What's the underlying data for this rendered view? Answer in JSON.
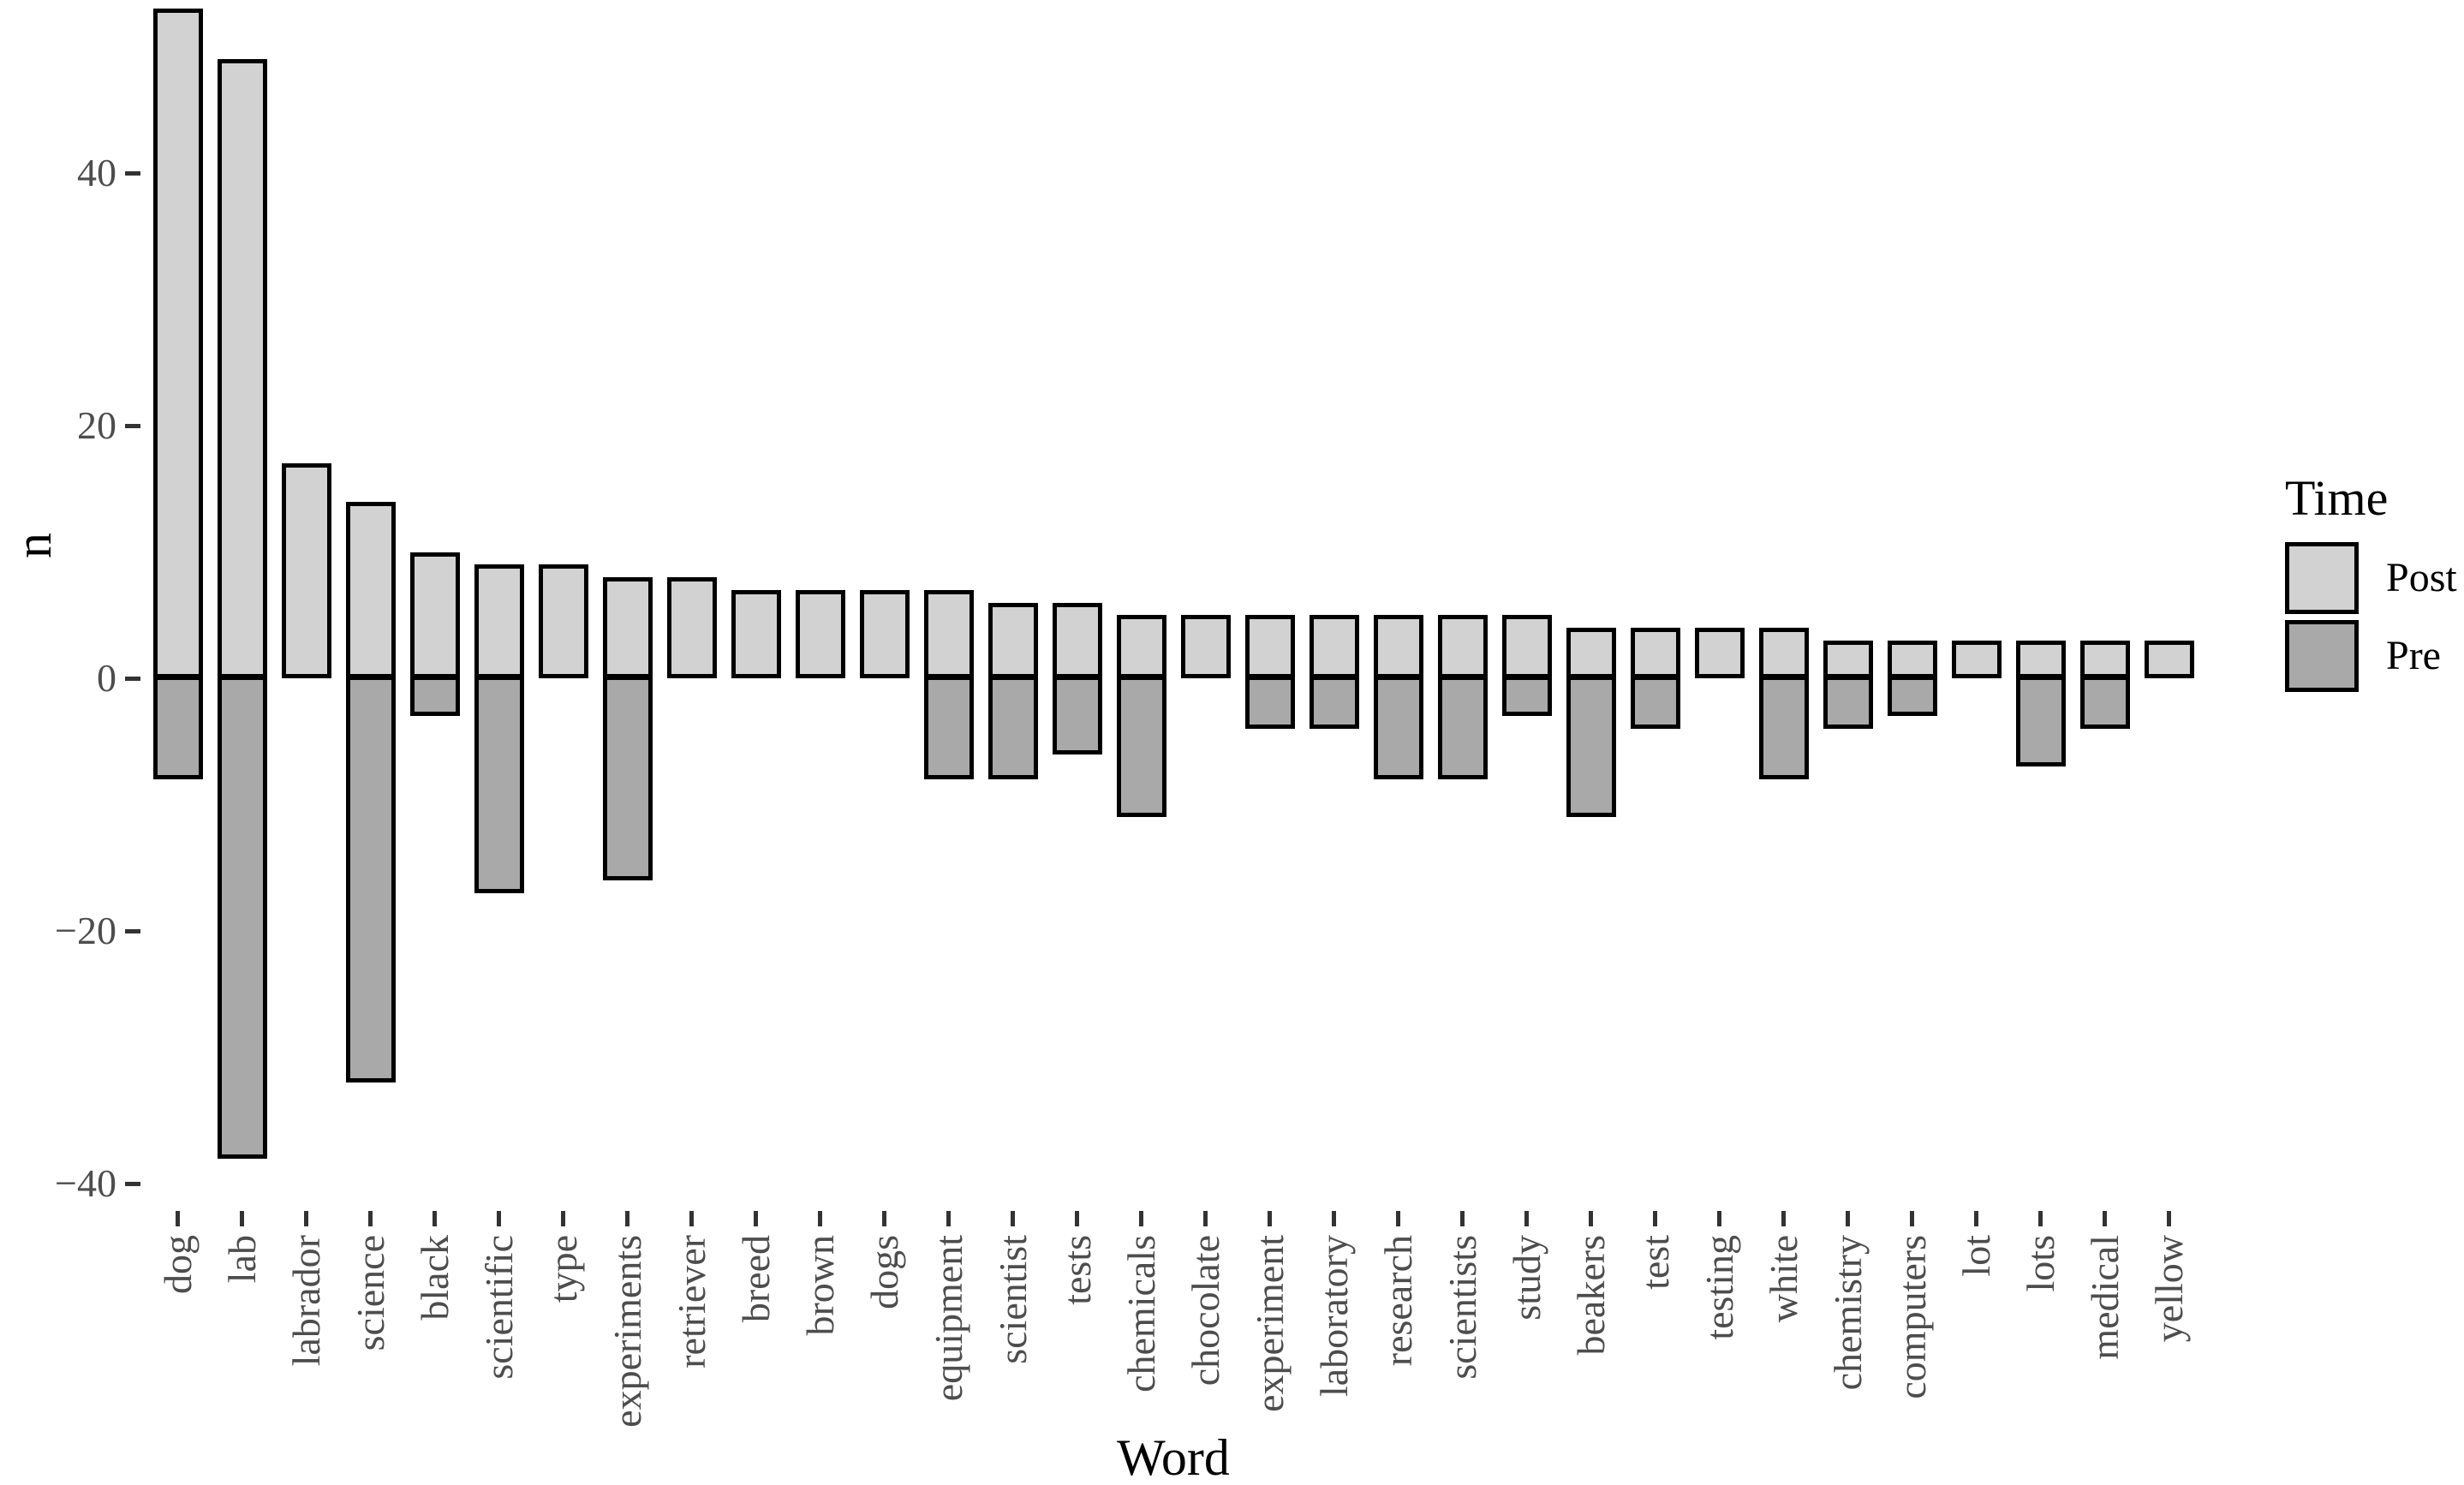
{
  "chart_data": {
    "type": "bar",
    "subtype": "diverging-stacked-vertical",
    "title": "",
    "xlabel": "Word",
    "ylabel": "n",
    "categories": [
      "dog",
      "lab",
      "labrador",
      "science",
      "black",
      "scientific",
      "type",
      "experiments",
      "retriever",
      "breed",
      "brown",
      "dogs",
      "equipment",
      "scientist",
      "tests",
      "chemicals",
      "chocolate",
      "experiment",
      "laboratory",
      "research",
      "scientists",
      "study",
      "beakers",
      "test",
      "testing",
      "white",
      "chemistry",
      "computers",
      "lot",
      "lots",
      "medical",
      "yellow"
    ],
    "series": [
      {
        "name": "Post",
        "color": "#d2d2d2",
        "values": [
          53,
          49,
          17,
          14,
          10,
          9,
          9,
          8,
          8,
          7,
          7,
          7,
          7,
          6,
          6,
          5,
          5,
          5,
          5,
          5,
          5,
          5,
          4,
          4,
          4,
          4,
          3,
          3,
          3,
          3,
          3,
          3
        ]
      },
      {
        "name": "Pre",
        "color": "#a9a9a9",
        "values": [
          -8,
          -38,
          0,
          -32,
          -3,
          -17,
          0,
          -16,
          0,
          0,
          0,
          0,
          -8,
          -8,
          -6,
          -11,
          0,
          -4,
          -4,
          -8,
          -8,
          -3,
          -11,
          -4,
          0,
          -8,
          -4,
          -3,
          0,
          -7,
          -4,
          0
        ]
      }
    ],
    "yticks": [
      {
        "value": 40,
        "label": "40"
      },
      {
        "value": 20,
        "label": "20"
      },
      {
        "value": 0,
        "label": "0"
      },
      {
        "value": -20,
        "label": "−20"
      },
      {
        "value": -40,
        "label": "−40"
      }
    ],
    "ylim": [
      -40.5,
      53
    ],
    "grid": false,
    "bar_border_color": "#000000",
    "legend": {
      "title": "Time",
      "position": "right",
      "entries": [
        {
          "name": "Post",
          "color": "#d2d2d2"
        },
        {
          "name": "Pre",
          "color": "#a9a9a9"
        }
      ]
    },
    "style": {
      "background": "#ffffff",
      "tick_label_color": "#4d4d4d",
      "tick_mark_color": "#333333",
      "axis_title_color": "#000000"
    }
  }
}
